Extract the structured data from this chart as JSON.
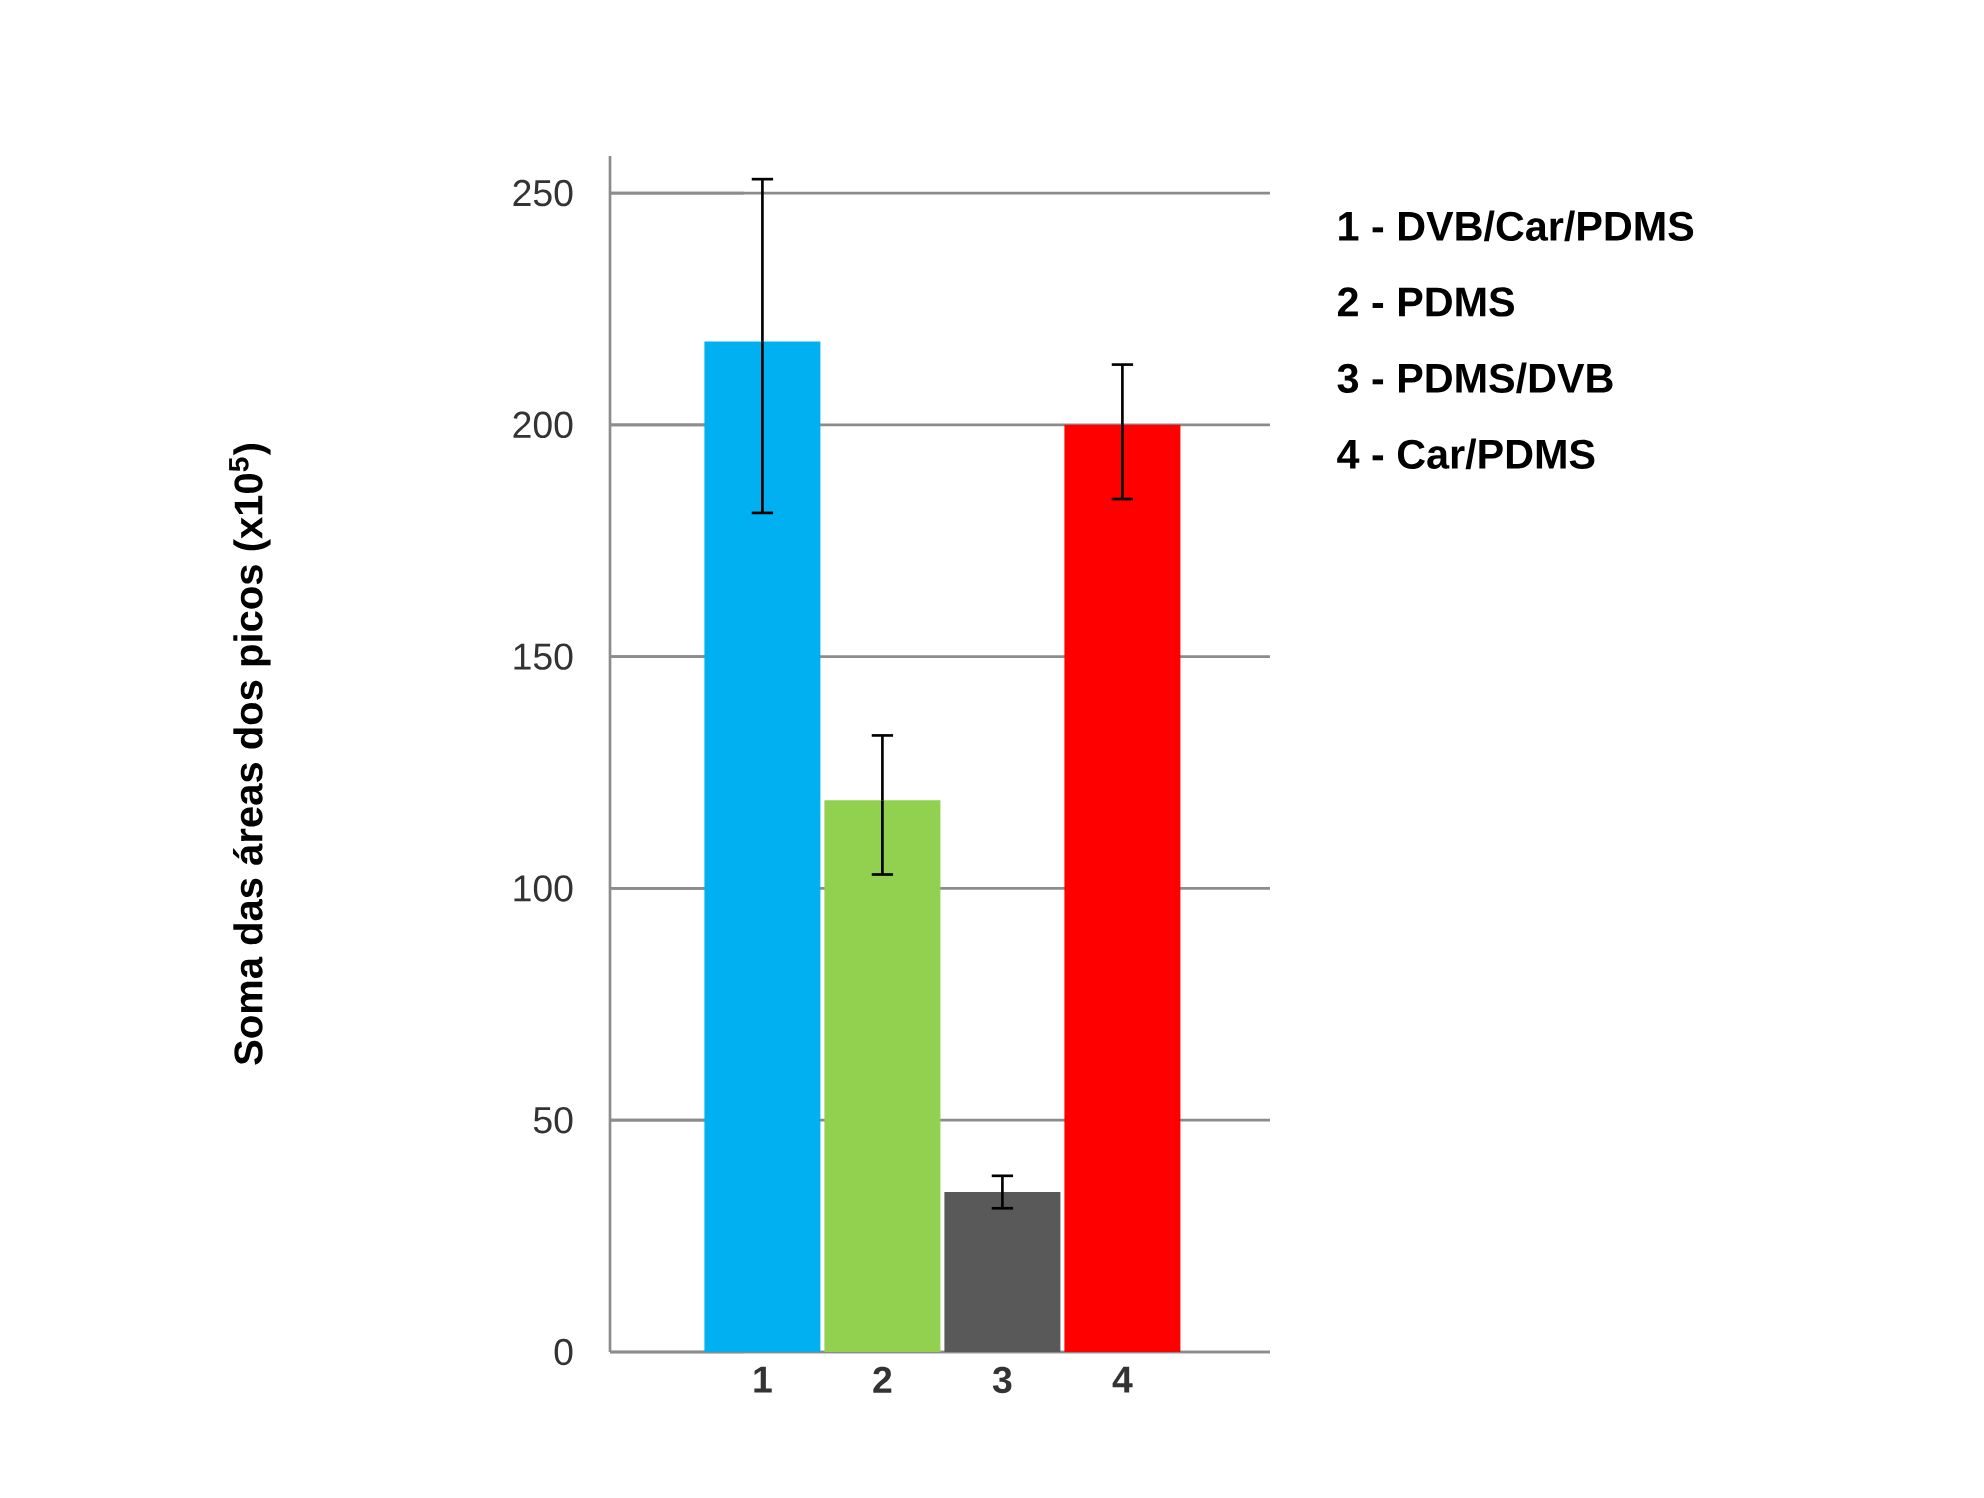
{
  "chart_data": {
    "type": "bar",
    "ylabel": "**Soma das áreas dos picos  (x10$^{5}$)**",
    "categories": [
      "1",
      "2",
      "3",
      "4"
    ],
    "values": [
      218,
      119,
      34.5,
      200
    ],
    "colors": [
      "#00b0f0",
      "#92d050",
      "#595959",
      "#ff0000"
    ],
    "errors": [
      [
        181,
        253
      ],
      [
        103,
        133
      ],
      [
        31,
        38
      ],
      [
        184,
        213
      ]
    ],
    "ylim": [
      0,
      258
    ],
    "yticks": [
      0,
      50,
      100,
      150,
      200,
      250
    ],
    "grid": "y",
    "annotations": [
      "1 - DVB/Car/PDMS",
      "2 - PDMS",
      "3 - PDMS/DVB",
      "4 - Car/PDMS"
    ]
  }
}
